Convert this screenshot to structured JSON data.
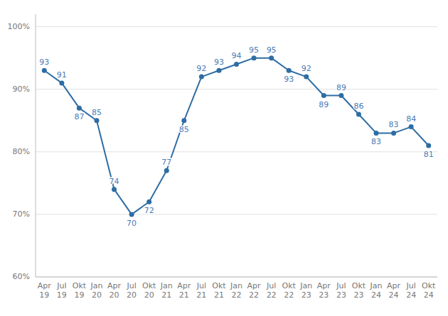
{
  "chart_data": {
    "type": "line",
    "categories": [
      "Apr\n19",
      "Jul\n19",
      "Okt\n19",
      "Jan\n20",
      "Apr\n20",
      "Jul\n20",
      "Okt\n20",
      "Jan\n21",
      "Apr\n21",
      "Jul\n21",
      "Okt\n21",
      "Jan\n22",
      "Apr\n22",
      "Jul\n22",
      "Okt\n22",
      "Jan\n23",
      "Apr\n23",
      "Jul\n23",
      "Okt\n23",
      "Jan\n24",
      "Apr\n24",
      "Jul\n24",
      "Okt\n24"
    ],
    "values": [
      93,
      91,
      87,
      85,
      74,
      70,
      72,
      77,
      85,
      92,
      93,
      94,
      95,
      95,
      93,
      92,
      89,
      89,
      86,
      83,
      83,
      84,
      81
    ],
    "color": "#2e6da4",
    "marker": "circle",
    "ylim": [
      60,
      102
    ],
    "yticks": [
      {
        "value": 60,
        "label": "60%"
      },
      {
        "value": 70,
        "label": "70%"
      },
      {
        "value": 80,
        "label": "80%"
      },
      {
        "value": 90,
        "label": "90%"
      },
      {
        "value": 100,
        "label": "100%"
      }
    ],
    "grid": true,
    "data_labels": true
  }
}
